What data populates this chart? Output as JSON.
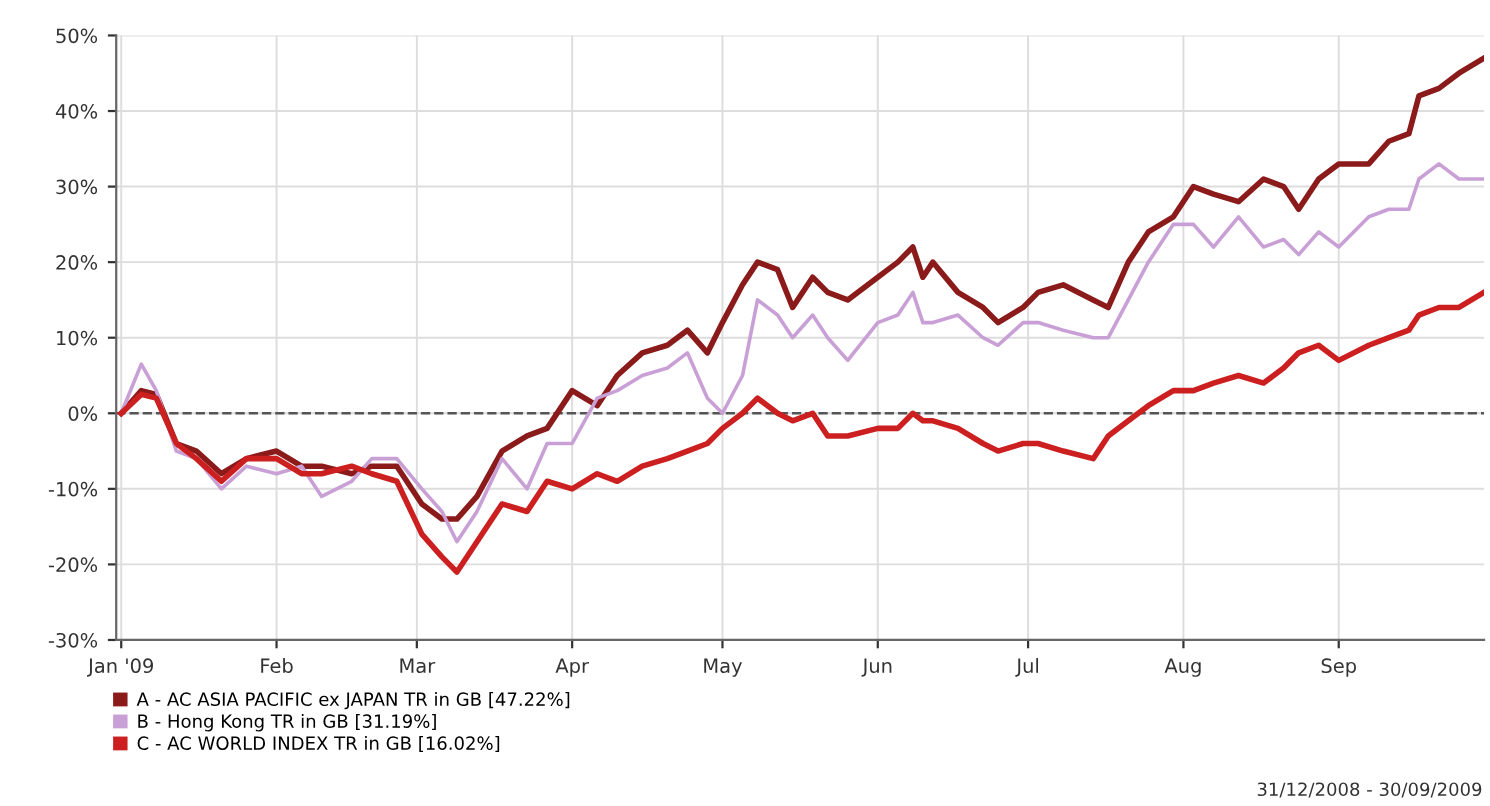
{
  "chart_data": {
    "type": "line",
    "x": [
      "2009-01-01",
      "2009-01-05",
      "2009-01-08",
      "2009-01-12",
      "2009-01-16",
      "2009-01-21",
      "2009-01-26",
      "2009-02-01",
      "2009-02-06",
      "2009-02-10",
      "2009-02-16",
      "2009-02-20",
      "2009-02-25",
      "2009-03-02",
      "2009-03-06",
      "2009-03-09",
      "2009-03-13",
      "2009-03-18",
      "2009-03-23",
      "2009-03-27",
      "2009-04-01",
      "2009-04-06",
      "2009-04-10",
      "2009-04-15",
      "2009-04-20",
      "2009-04-24",
      "2009-04-28",
      "2009-05-01",
      "2009-05-05",
      "2009-05-08",
      "2009-05-12",
      "2009-05-15",
      "2009-05-19",
      "2009-05-22",
      "2009-05-26",
      "2009-06-01",
      "2009-06-05",
      "2009-06-08",
      "2009-06-10",
      "2009-06-12",
      "2009-06-17",
      "2009-06-22",
      "2009-06-25",
      "2009-06-30",
      "2009-07-03",
      "2009-07-08",
      "2009-07-14",
      "2009-07-17",
      "2009-07-21",
      "2009-07-25",
      "2009-07-30",
      "2009-08-03",
      "2009-08-07",
      "2009-08-12",
      "2009-08-17",
      "2009-08-21",
      "2009-08-24",
      "2009-08-28",
      "2009-09-01",
      "2009-09-07",
      "2009-09-11",
      "2009-09-15",
      "2009-09-17",
      "2009-09-21",
      "2009-09-25",
      "2009-09-30"
    ],
    "series": [
      {
        "name": "A - AC ASIA PACIFIC ex JAPAN TR in GB [47.22%]",
        "color": "#8b1a1a",
        "values": [
          0,
          3,
          2.5,
          -4,
          -5,
          -8,
          -6,
          -5,
          -7,
          -7,
          -8,
          -7,
          -7,
          -12,
          -14,
          -14,
          -11,
          -5,
          -3,
          -2,
          3,
          1,
          5,
          8,
          9,
          11,
          8,
          12,
          17,
          20,
          19,
          14,
          18,
          16,
          15,
          18,
          20,
          22,
          18,
          20,
          16,
          14,
          12,
          14,
          16,
          17,
          15,
          14,
          20,
          24,
          26,
          30,
          29,
          28,
          31,
          30,
          27,
          31,
          33,
          33,
          36,
          37,
          42,
          43,
          45,
          47
        ]
      },
      {
        "name": "B - Hong Kong TR in GB [31.19%]",
        "color": "#c9a0d6",
        "values": [
          0,
          6.5,
          3,
          -5,
          -6,
          -10,
          -7,
          -8,
          -7,
          -11,
          -9,
          -6,
          -6,
          -10,
          -13,
          -17,
          -13,
          -6,
          -10,
          -4,
          -4,
          2,
          3,
          5,
          6,
          8,
          2,
          0,
          5,
          15,
          13,
          10,
          13,
          10,
          7,
          12,
          13,
          16,
          12,
          12,
          13,
          10,
          9,
          12,
          12,
          11,
          10,
          10,
          15,
          20,
          25,
          25,
          22,
          26,
          22,
          23,
          21,
          24,
          22,
          26,
          27,
          27,
          31,
          33,
          31,
          31
        ]
      },
      {
        "name": "C - AC WORLD INDEX TR in GB [16.02%]",
        "color": "#cc1f1f",
        "values": [
          0,
          2.5,
          2,
          -4,
          -6,
          -9,
          -6,
          -6,
          -8,
          -8,
          -7,
          -8,
          -9,
          -16,
          -19,
          -21,
          -17,
          -12,
          -13,
          -9,
          -10,
          -8,
          -9,
          -7,
          -6,
          -5,
          -4,
          -2,
          0,
          2,
          0,
          -1,
          0,
          -3,
          -3,
          -2,
          -2,
          0,
          -1,
          -1,
          -2,
          -4,
          -5,
          -4,
          -4,
          -5,
          -6,
          -3,
          -1,
          1,
          3,
          3,
          4,
          5,
          4,
          6,
          8,
          9,
          7,
          9,
          10,
          11,
          13,
          14,
          14,
          16
        ]
      }
    ],
    "xlim": [
      "2008-12-31",
      "2009-09-30"
    ],
    "xticks": [
      {
        "value": "2009-01-01",
        "label": "Jan '09"
      },
      {
        "value": "2009-02-01",
        "label": "Feb"
      },
      {
        "value": "2009-03-01",
        "label": "Mar"
      },
      {
        "value": "2009-04-01",
        "label": "Apr"
      },
      {
        "value": "2009-05-01",
        "label": "May"
      },
      {
        "value": "2009-06-01",
        "label": "Jun"
      },
      {
        "value": "2009-07-01",
        "label": "Jul"
      },
      {
        "value": "2009-08-01",
        "label": "Aug"
      },
      {
        "value": "2009-09-01",
        "label": "Sep"
      }
    ],
    "ylim": [
      -30,
      50
    ],
    "yticks": [
      {
        "value": -30,
        "label": "-30%"
      },
      {
        "value": -20,
        "label": "-20%"
      },
      {
        "value": -10,
        "label": "-10%"
      },
      {
        "value": 0,
        "label": "0%"
      },
      {
        "value": 10,
        "label": "10%"
      },
      {
        "value": 20,
        "label": "20%"
      },
      {
        "value": 30,
        "label": "30%"
      },
      {
        "value": 40,
        "label": "40%"
      },
      {
        "value": 50,
        "label": "50%"
      }
    ],
    "ref_lines": [
      {
        "axis": "y",
        "value": 0,
        "color": "#555555",
        "line_style": "dashed"
      }
    ],
    "annotations": [
      "31/12/2008 - 30/09/2009"
    ],
    "grid": true,
    "legend": "bottom left",
    "marker": "none",
    "line_style": "solid"
  }
}
